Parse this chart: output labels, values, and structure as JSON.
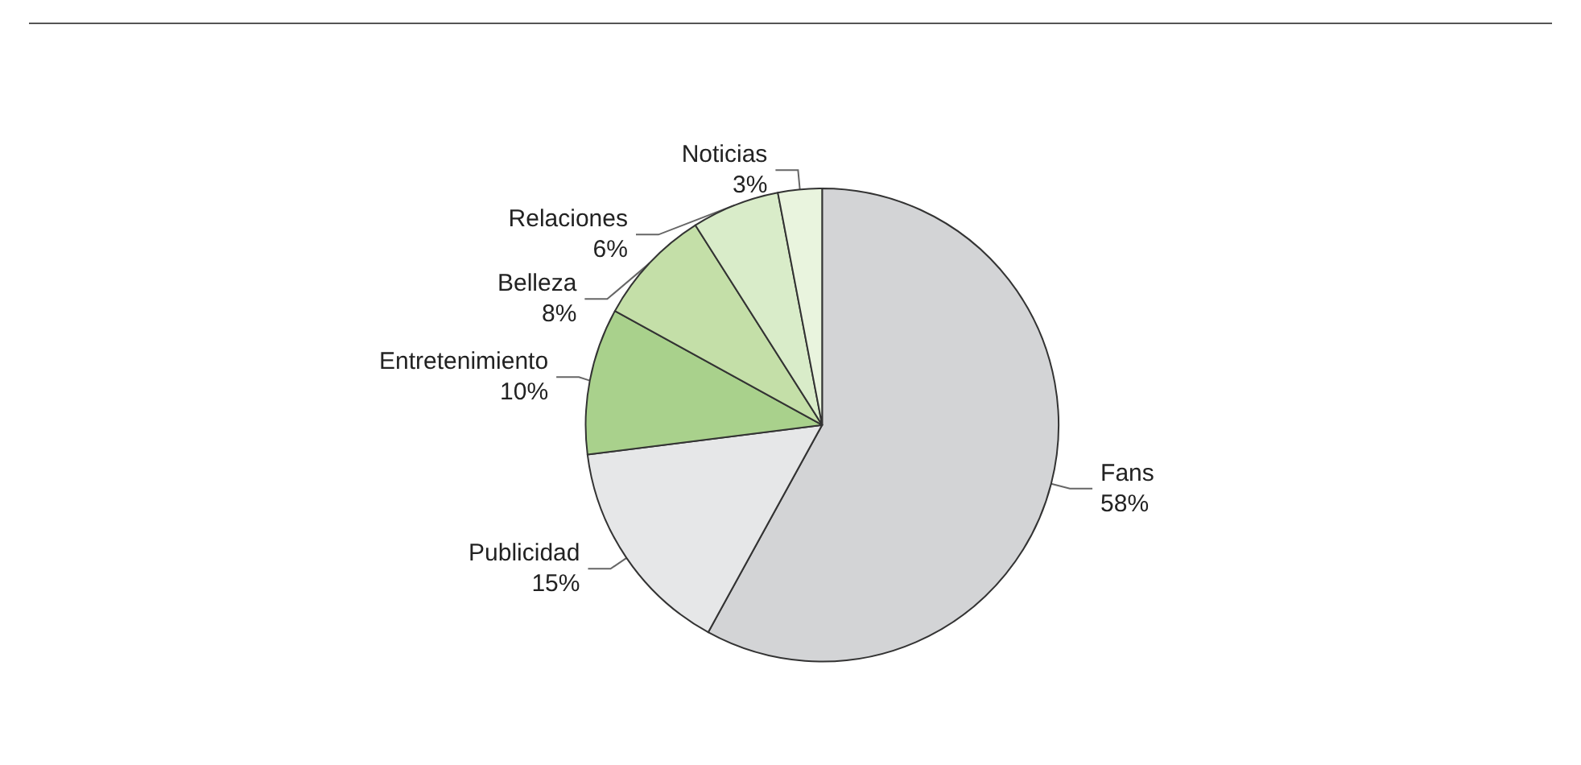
{
  "chart_data": {
    "type": "pie",
    "categories": [
      "Fans",
      "Publicidad",
      "Entretenimiento",
      "Belleza",
      "Relaciones",
      "Noticias"
    ],
    "values": [
      58,
      15,
      10,
      8,
      6,
      3
    ],
    "value_labels": [
      "58%",
      "15%",
      "10%",
      "8%",
      "6%",
      "3%"
    ],
    "colors": [
      "#d3d4d6",
      "#e6e7e8",
      "#a9d18c",
      "#c4dfa8",
      "#d9ecc9",
      "#e9f4de"
    ],
    "legend": false
  }
}
